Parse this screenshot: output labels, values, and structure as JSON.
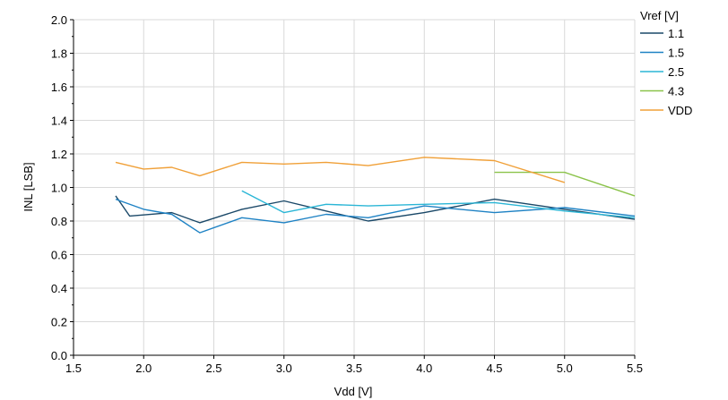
{
  "chart_data": {
    "type": "line",
    "title": "",
    "xlabel": "Vdd [V]",
    "ylabel": "INL [LSB]",
    "xlim": [
      1.5,
      5.5
    ],
    "ylim": [
      0.0,
      2.0
    ],
    "xticks": [
      1.5,
      2.0,
      2.5,
      3.0,
      3.5,
      4.0,
      4.5,
      5.0,
      5.5
    ],
    "xtick_labels": [
      "1.5",
      "2.0",
      "2.5",
      "3.0",
      "3.5",
      "4.0",
      "4.5",
      "5.0",
      "5.5"
    ],
    "yticks": [
      0.0,
      0.2,
      0.4,
      0.6,
      0.8,
      1.0,
      1.2,
      1.4,
      1.6,
      1.8,
      2.0
    ],
    "ytick_labels": [
      "0.0",
      "0.2",
      "0.4",
      "0.6",
      "0.8",
      "1.0",
      "1.2",
      "1.4",
      "1.6",
      "1.8",
      "2.0"
    ],
    "grid": true,
    "legend": {
      "title": "Vref [V]",
      "placement": "top-right, outside plot"
    },
    "series": [
      {
        "name": "1.1",
        "color": "#1a4868",
        "x": [
          1.8,
          1.9,
          2.2,
          2.4,
          2.7,
          3.0,
          3.3,
          3.6,
          4.0,
          4.5,
          5.0,
          5.5
        ],
        "y": [
          0.95,
          0.83,
          0.85,
          0.79,
          0.87,
          0.92,
          0.86,
          0.8,
          0.85,
          0.93,
          0.87,
          0.81
        ]
      },
      {
        "name": "1.5",
        "color": "#1e82c4",
        "x": [
          1.8,
          2.0,
          2.2,
          2.4,
          2.7,
          3.0,
          3.3,
          3.6,
          4.0,
          4.5,
          5.0,
          5.5
        ],
        "y": [
          0.93,
          0.87,
          0.84,
          0.73,
          0.82,
          0.79,
          0.84,
          0.82,
          0.89,
          0.85,
          0.88,
          0.83
        ]
      },
      {
        "name": "2.5",
        "color": "#2bb6d6",
        "x": [
          2.7,
          3.0,
          3.3,
          3.6,
          4.0,
          4.5,
          5.0,
          5.5
        ],
        "y": [
          0.98,
          0.85,
          0.9,
          0.89,
          0.9,
          0.91,
          0.86,
          0.82
        ]
      },
      {
        "name": "4.3",
        "color": "#8bc34a",
        "x": [
          4.5,
          5.0,
          5.5
        ],
        "y": [
          1.09,
          1.09,
          0.95
        ]
      },
      {
        "name": "VDD",
        "color": "#f0a038",
        "x": [
          1.8,
          2.0,
          2.2,
          2.4,
          2.7,
          3.0,
          3.3,
          3.6,
          4.0,
          4.5,
          5.0
        ],
        "y": [
          1.15,
          1.11,
          1.12,
          1.07,
          1.15,
          1.14,
          1.15,
          1.13,
          1.18,
          1.16,
          1.03
        ]
      }
    ]
  }
}
